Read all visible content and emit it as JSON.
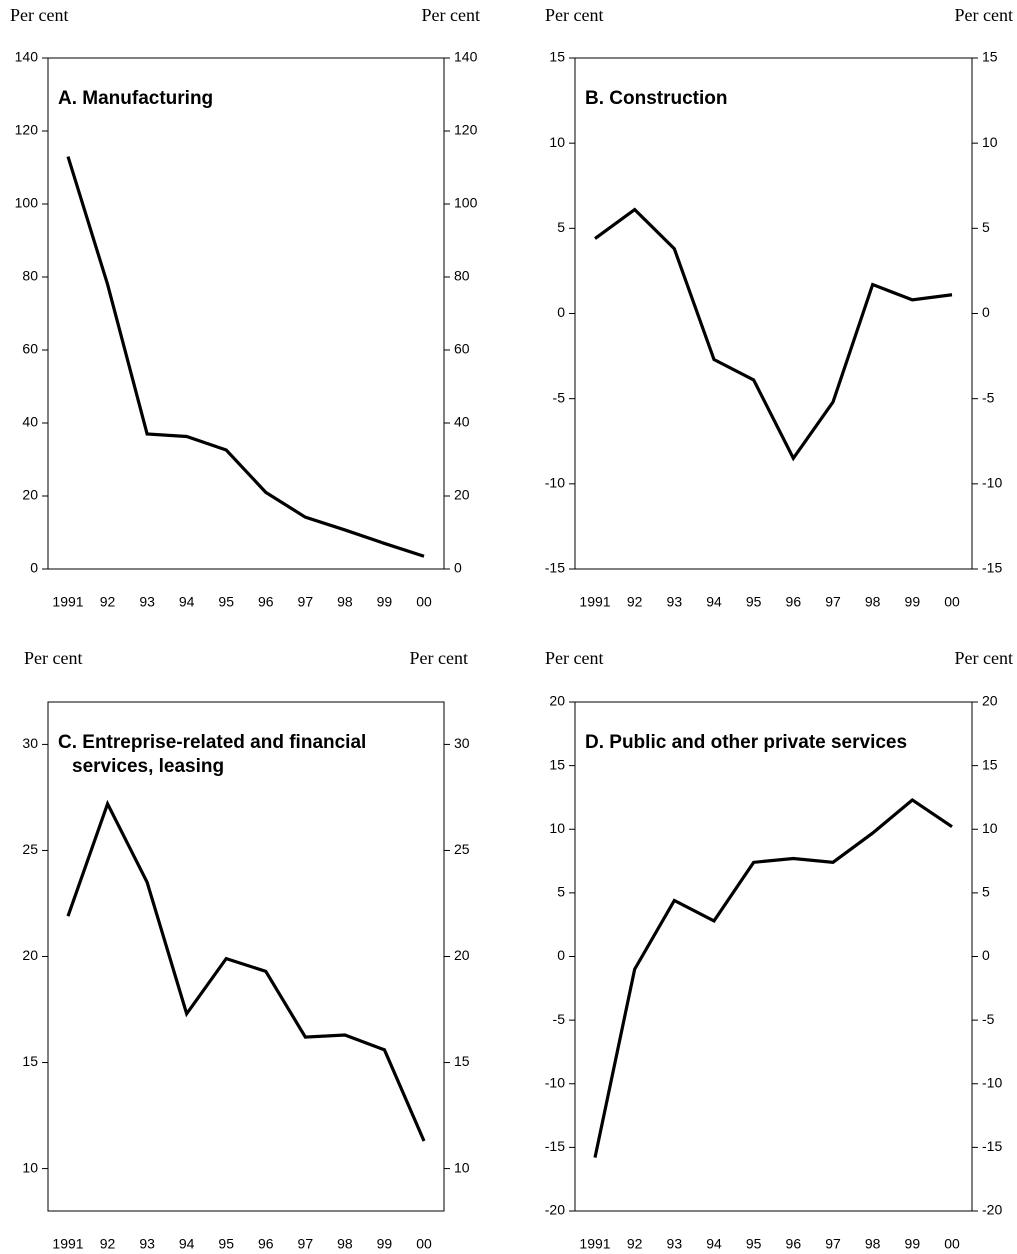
{
  "chart_data": [
    {
      "type": "line",
      "title": "A. Manufacturing",
      "y_label_left": "Per cent",
      "y_label_right": "Per cent",
      "categories": [
        "1991",
        "92",
        "93",
        "94",
        "95",
        "96",
        "97",
        "98",
        "99",
        "00"
      ],
      "series": [
        {
          "color": "#000000",
          "values": [
            113,
            78,
            37,
            36.3,
            32.6,
            21,
            14.2,
            10.7,
            7,
            3.5
          ]
        }
      ],
      "ylim": [
        0,
        140
      ],
      "yticks": [
        0,
        20,
        40,
        60,
        80,
        100,
        120,
        140
      ],
      "y2lim": [
        0,
        140
      ],
      "y2ticks": [
        0,
        20,
        40,
        60,
        80,
        100,
        120,
        140
      ]
    },
    {
      "type": "line",
      "title": "B. Construction",
      "y_label_left": "Per cent",
      "y_label_right": "Per cent",
      "categories": [
        "1991",
        "92",
        "93",
        "94",
        "95",
        "96",
        "97",
        "98",
        "99",
        "00"
      ],
      "series": [
        {
          "color": "#000000",
          "values": [
            4.4,
            6.1,
            3.8,
            -2.7,
            -3.9,
            -8.5,
            -5.2,
            1.7,
            0.8,
            1.1
          ]
        }
      ],
      "ylim": [
        -15,
        15
      ],
      "yticks": [
        -15,
        -10,
        -5,
        0,
        5,
        10,
        15
      ],
      "y2lim": [
        -15,
        15
      ],
      "y2ticks": [
        -15,
        -10,
        -5,
        0,
        5,
        10,
        15
      ]
    },
    {
      "type": "line",
      "title": "C. Entreprise-related and financial services, leasing",
      "y_label_left": "Per cent",
      "y_label_right": "Per cent",
      "categories": [
        "1991",
        "92",
        "93",
        "94",
        "95",
        "96",
        "97",
        "98",
        "99",
        "00"
      ],
      "series": [
        {
          "color": "#000000",
          "values": [
            21.9,
            27.2,
            23.5,
            17.3,
            19.9,
            19.3,
            16.2,
            16.3,
            15.6,
            11.3
          ]
        }
      ],
      "ylim": [
        8,
        32
      ],
      "yticks": [
        10,
        15,
        20,
        25,
        30
      ],
      "y2lim": [
        8,
        32
      ],
      "y2ticks": [
        10,
        15,
        20,
        25,
        30
      ]
    },
    {
      "type": "line",
      "title": "D. Public and other private services",
      "y_label_left": "Per cent",
      "y_label_right": "Per cent",
      "categories": [
        "1991",
        "92",
        "93",
        "94",
        "95",
        "96",
        "97",
        "98",
        "99",
        "00"
      ],
      "series": [
        {
          "color": "#000000",
          "values": [
            -15.8,
            -1,
            4.4,
            2.8,
            7.4,
            7.7,
            7.4,
            9.7,
            12.3,
            10.2
          ]
        }
      ],
      "ylim": [
        -20,
        20
      ],
      "yticks": [
        -20,
        -15,
        -10,
        -5,
        0,
        5,
        10,
        15,
        20
      ],
      "y2lim": [
        -20,
        20
      ],
      "y2ticks": [
        -20,
        -15,
        -10,
        -5,
        0,
        5,
        10,
        15,
        20
      ]
    }
  ]
}
